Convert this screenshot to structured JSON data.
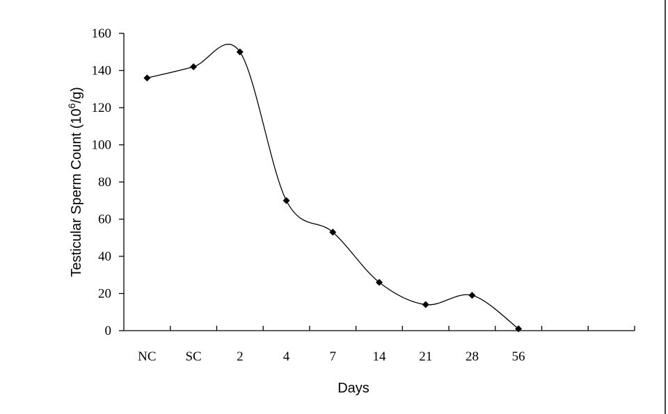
{
  "chart_data": {
    "type": "line",
    "categories": [
      "NC",
      "SC",
      "2",
      "4",
      "7",
      "14",
      "21",
      "28",
      "56"
    ],
    "values": [
      136,
      142,
      150,
      70,
      53,
      26,
      14,
      19,
      1
    ],
    "xlabel": "Days",
    "ylabel_main": "Testicular Sperm Count (10",
    "ylabel_sup": "6",
    "ylabel_end": "/g)",
    "ylim": [
      0,
      160
    ],
    "yticks": [
      "0",
      "20",
      "40",
      "60",
      "80",
      "100",
      "120",
      "140",
      "160"
    ],
    "grid": false,
    "legend": "none",
    "smooth": true,
    "line_color": "#000000",
    "marker": "diamond"
  }
}
